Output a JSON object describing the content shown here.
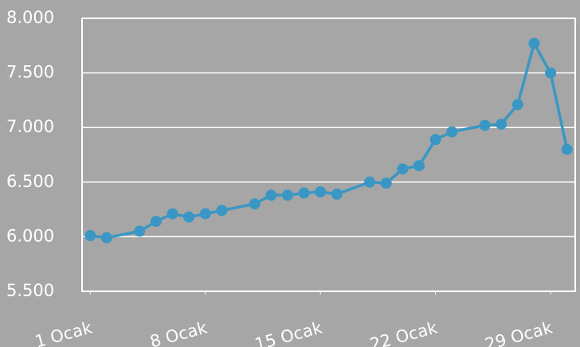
{
  "chart_data": {
    "type": "line",
    "x": [
      1,
      2,
      4,
      5,
      6,
      7,
      8,
      9,
      11,
      12,
      13,
      14,
      15,
      16,
      18,
      19,
      20,
      21,
      22,
      23,
      25,
      26,
      27,
      28,
      29,
      30
    ],
    "series": [
      {
        "color": "#3a97c4",
        "values": [
          6010,
          5990,
          6050,
          6140,
          6210,
          6180,
          6210,
          6240,
          6300,
          6380,
          6380,
          6400,
          6410,
          6390,
          6500,
          6490,
          6620,
          6650,
          6890,
          6960,
          7020,
          7030,
          7210,
          7770,
          7500,
          6800
        ]
      }
    ],
    "xlim": [
      0.5,
      30.5
    ],
    "xticks": [
      {
        "value": 1,
        "label": "1 Ocak"
      },
      {
        "value": 8,
        "label": "8 Ocak"
      },
      {
        "value": 15,
        "label": "15 Ocak"
      },
      {
        "value": 22,
        "label": "22 Ocak"
      },
      {
        "value": 29,
        "label": "29 Ocak"
      }
    ],
    "ylim": [
      5500,
      8000
    ],
    "yticks": [
      {
        "value": 5500,
        "label": "5.500"
      },
      {
        "value": 6000,
        "label": "6.000"
      },
      {
        "value": 6500,
        "label": "6.500"
      },
      {
        "value": 7000,
        "label": "7.000"
      },
      {
        "value": 7500,
        "label": "7.500"
      },
      {
        "value": 8000,
        "label": "8.000"
      }
    ],
    "grid": true
  }
}
